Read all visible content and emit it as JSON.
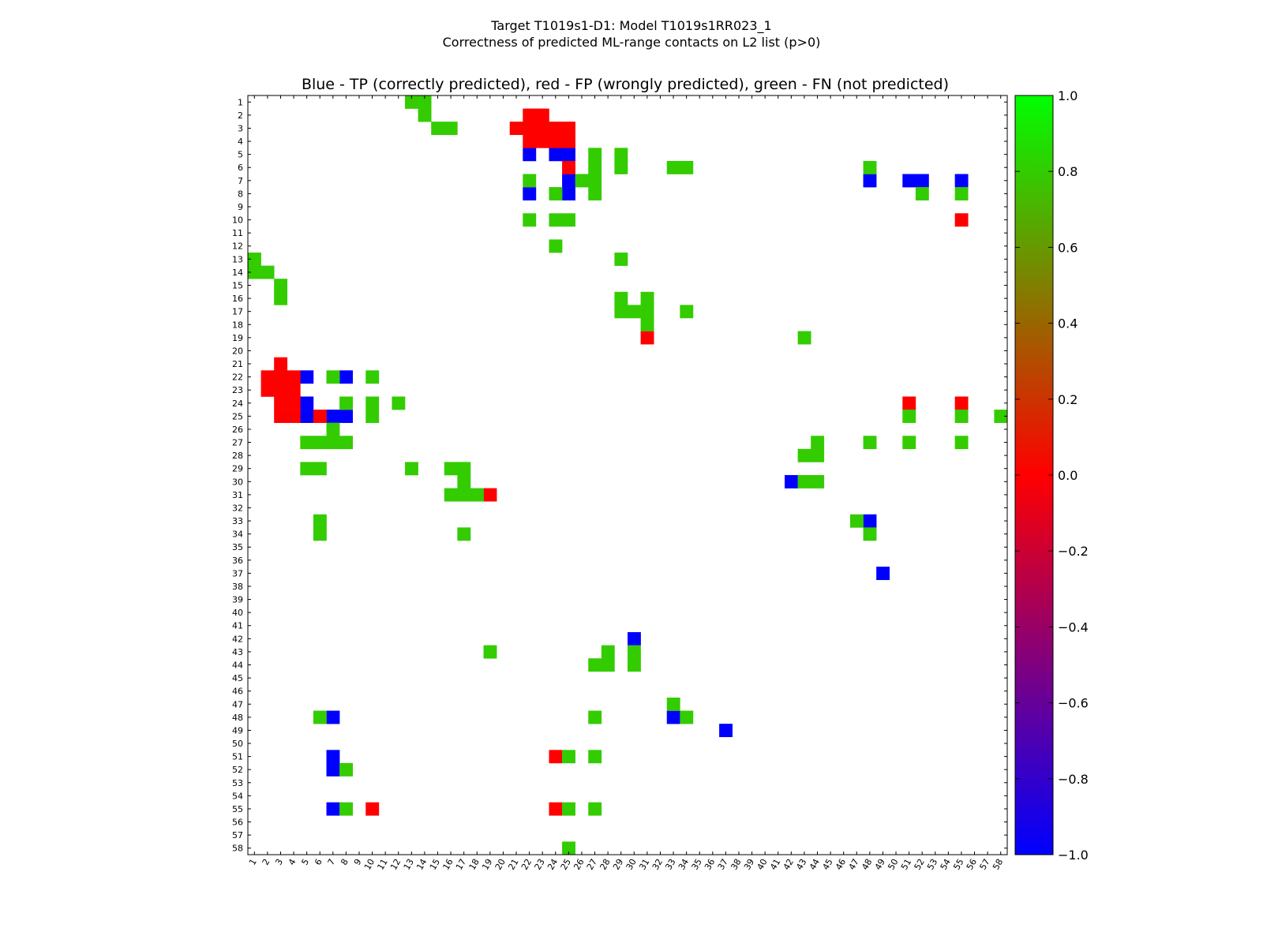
{
  "chart_data": {
    "type": "heatmap",
    "title": "Target T1019s1-D1: Model T1019s1RR023_1",
    "subtitle": "Correctness of predicted ML-range contacts on L2 list (p>0)",
    "axes_title": "Blue - TP (correctly predicted), red - FP (wrongly predicted), green - FN (not predicted)",
    "x_ticks": [
      "1",
      "2",
      "3",
      "4",
      "5",
      "6",
      "7",
      "8",
      "9",
      "10",
      "11",
      "12",
      "13",
      "14",
      "15",
      "16",
      "17",
      "18",
      "19",
      "20",
      "21",
      "22",
      "23",
      "24",
      "25",
      "26",
      "27",
      "28",
      "29",
      "30",
      "31",
      "32",
      "33",
      "34",
      "35",
      "36",
      "37",
      "38",
      "39",
      "40",
      "41",
      "42",
      "43",
      "44",
      "45",
      "46",
      "47",
      "48",
      "49",
      "50",
      "51",
      "52",
      "53",
      "54",
      "55",
      "56",
      "57",
      "58"
    ],
    "y_ticks": [
      "1",
      "2",
      "3",
      "4",
      "5",
      "6",
      "7",
      "8",
      "9",
      "10",
      "11",
      "12",
      "13",
      "14",
      "15",
      "16",
      "17",
      "18",
      "19",
      "20",
      "21",
      "22",
      "23",
      "24",
      "25",
      "26",
      "27",
      "28",
      "29",
      "30",
      "31",
      "32",
      "33",
      "34",
      "35",
      "36",
      "37",
      "38",
      "39",
      "40",
      "41",
      "42",
      "43",
      "44",
      "45",
      "46",
      "47",
      "48",
      "49",
      "50",
      "51",
      "52",
      "53",
      "54",
      "55",
      "56",
      "57",
      "58"
    ],
    "colorbar": {
      "ticks": [
        "1.0",
        "0.8",
        "0.6",
        "0.4",
        "0.2",
        "0.0",
        "−0.2",
        "−0.4",
        "−0.6",
        "−0.8",
        "−1.0"
      ],
      "range": [
        -1.0,
        1.0
      ],
      "stops": [
        "#0000ff",
        "#ff0000",
        "#00ff00"
      ]
    },
    "colors": {
      "tp": "#0000ff",
      "fp": "#ff0000",
      "fn": "#33cc00"
    },
    "legend": [
      {
        "label": "TP",
        "value": -1,
        "color": "#0000ff"
      },
      {
        "label": "FP",
        "value": 0,
        "color": "#ff0000"
      },
      {
        "label": "FN",
        "value": 0.8,
        "color": "#33cc00"
      }
    ],
    "cells": {
      "tp": [
        [
          5,
          22
        ],
        [
          5,
          24
        ],
        [
          5,
          25
        ],
        [
          7,
          25
        ],
        [
          7,
          48
        ],
        [
          7,
          51
        ],
        [
          7,
          52
        ],
        [
          7,
          55
        ],
        [
          8,
          22
        ],
        [
          8,
          25
        ],
        [
          22,
          5
        ],
        [
          22,
          8
        ],
        [
          24,
          5
        ],
        [
          25,
          5
        ],
        [
          25,
          7
        ],
        [
          25,
          8
        ],
        [
          30,
          42
        ],
        [
          33,
          48
        ],
        [
          37,
          49
        ],
        [
          42,
          30
        ],
        [
          48,
          7
        ],
        [
          48,
          33
        ],
        [
          49,
          37
        ],
        [
          51,
          7
        ],
        [
          52,
          7
        ],
        [
          55,
          7
        ]
      ],
      "fp": [
        [
          2,
          22
        ],
        [
          2,
          23
        ],
        [
          3,
          21
        ],
        [
          3,
          22
        ],
        [
          3,
          23
        ],
        [
          3,
          24
        ],
        [
          3,
          25
        ],
        [
          4,
          22
        ],
        [
          4,
          23
        ],
        [
          4,
          24
        ],
        [
          4,
          25
        ],
        [
          6,
          25
        ],
        [
          10,
          55
        ],
        [
          19,
          31
        ],
        [
          21,
          3
        ],
        [
          22,
          2
        ],
        [
          22,
          3
        ],
        [
          22,
          4
        ],
        [
          23,
          2
        ],
        [
          23,
          3
        ],
        [
          23,
          4
        ],
        [
          24,
          3
        ],
        [
          24,
          4
        ],
        [
          24,
          51
        ],
        [
          24,
          55
        ],
        [
          25,
          3
        ],
        [
          25,
          4
        ],
        [
          25,
          6
        ],
        [
          31,
          19
        ],
        [
          51,
          24
        ],
        [
          55,
          10
        ],
        [
          55,
          24
        ]
      ],
      "fn": [
        [
          1,
          13
        ],
        [
          1,
          14
        ],
        [
          2,
          14
        ],
        [
          3,
          15
        ],
        [
          3,
          16
        ],
        [
          5,
          27
        ],
        [
          5,
          29
        ],
        [
          6,
          27
        ],
        [
          6,
          29
        ],
        [
          6,
          33
        ],
        [
          6,
          34
        ],
        [
          6,
          48
        ],
        [
          7,
          22
        ],
        [
          7,
          26
        ],
        [
          7,
          27
        ],
        [
          8,
          24
        ],
        [
          8,
          27
        ],
        [
          8,
          52
        ],
        [
          8,
          55
        ],
        [
          10,
          22
        ],
        [
          10,
          24
        ],
        [
          10,
          25
        ],
        [
          12,
          24
        ],
        [
          13,
          1
        ],
        [
          13,
          29
        ],
        [
          14,
          1
        ],
        [
          14,
          2
        ],
        [
          15,
          3
        ],
        [
          16,
          3
        ],
        [
          16,
          29
        ],
        [
          16,
          31
        ],
        [
          17,
          29
        ],
        [
          17,
          30
        ],
        [
          17,
          31
        ],
        [
          17,
          34
        ],
        [
          18,
          31
        ],
        [
          19,
          43
        ],
        [
          22,
          7
        ],
        [
          22,
          10
        ],
        [
          24,
          8
        ],
        [
          24,
          10
        ],
        [
          24,
          12
        ],
        [
          25,
          10
        ],
        [
          25,
          51
        ],
        [
          25,
          55
        ],
        [
          25,
          58
        ],
        [
          26,
          7
        ],
        [
          27,
          5
        ],
        [
          27,
          6
        ],
        [
          27,
          7
        ],
        [
          27,
          8
        ],
        [
          27,
          44
        ],
        [
          27,
          48
        ],
        [
          27,
          51
        ],
        [
          27,
          55
        ],
        [
          28,
          43
        ],
        [
          28,
          44
        ],
        [
          29,
          5
        ],
        [
          29,
          6
        ],
        [
          29,
          13
        ],
        [
          29,
          16
        ],
        [
          29,
          17
        ],
        [
          30,
          17
        ],
        [
          30,
          43
        ],
        [
          30,
          44
        ],
        [
          31,
          16
        ],
        [
          31,
          17
        ],
        [
          31,
          18
        ],
        [
          33,
          6
        ],
        [
          33,
          47
        ],
        [
          34,
          6
        ],
        [
          34,
          17
        ],
        [
          34,
          48
        ],
        [
          43,
          19
        ],
        [
          43,
          28
        ],
        [
          43,
          30
        ],
        [
          44,
          27
        ],
        [
          44,
          28
        ],
        [
          44,
          30
        ],
        [
          47,
          33
        ],
        [
          48,
          6
        ],
        [
          48,
          27
        ],
        [
          48,
          34
        ],
        [
          51,
          25
        ],
        [
          51,
          27
        ],
        [
          52,
          8
        ],
        [
          55,
          8
        ],
        [
          55,
          25
        ],
        [
          55,
          27
        ],
        [
          58,
          25
        ]
      ]
    }
  }
}
